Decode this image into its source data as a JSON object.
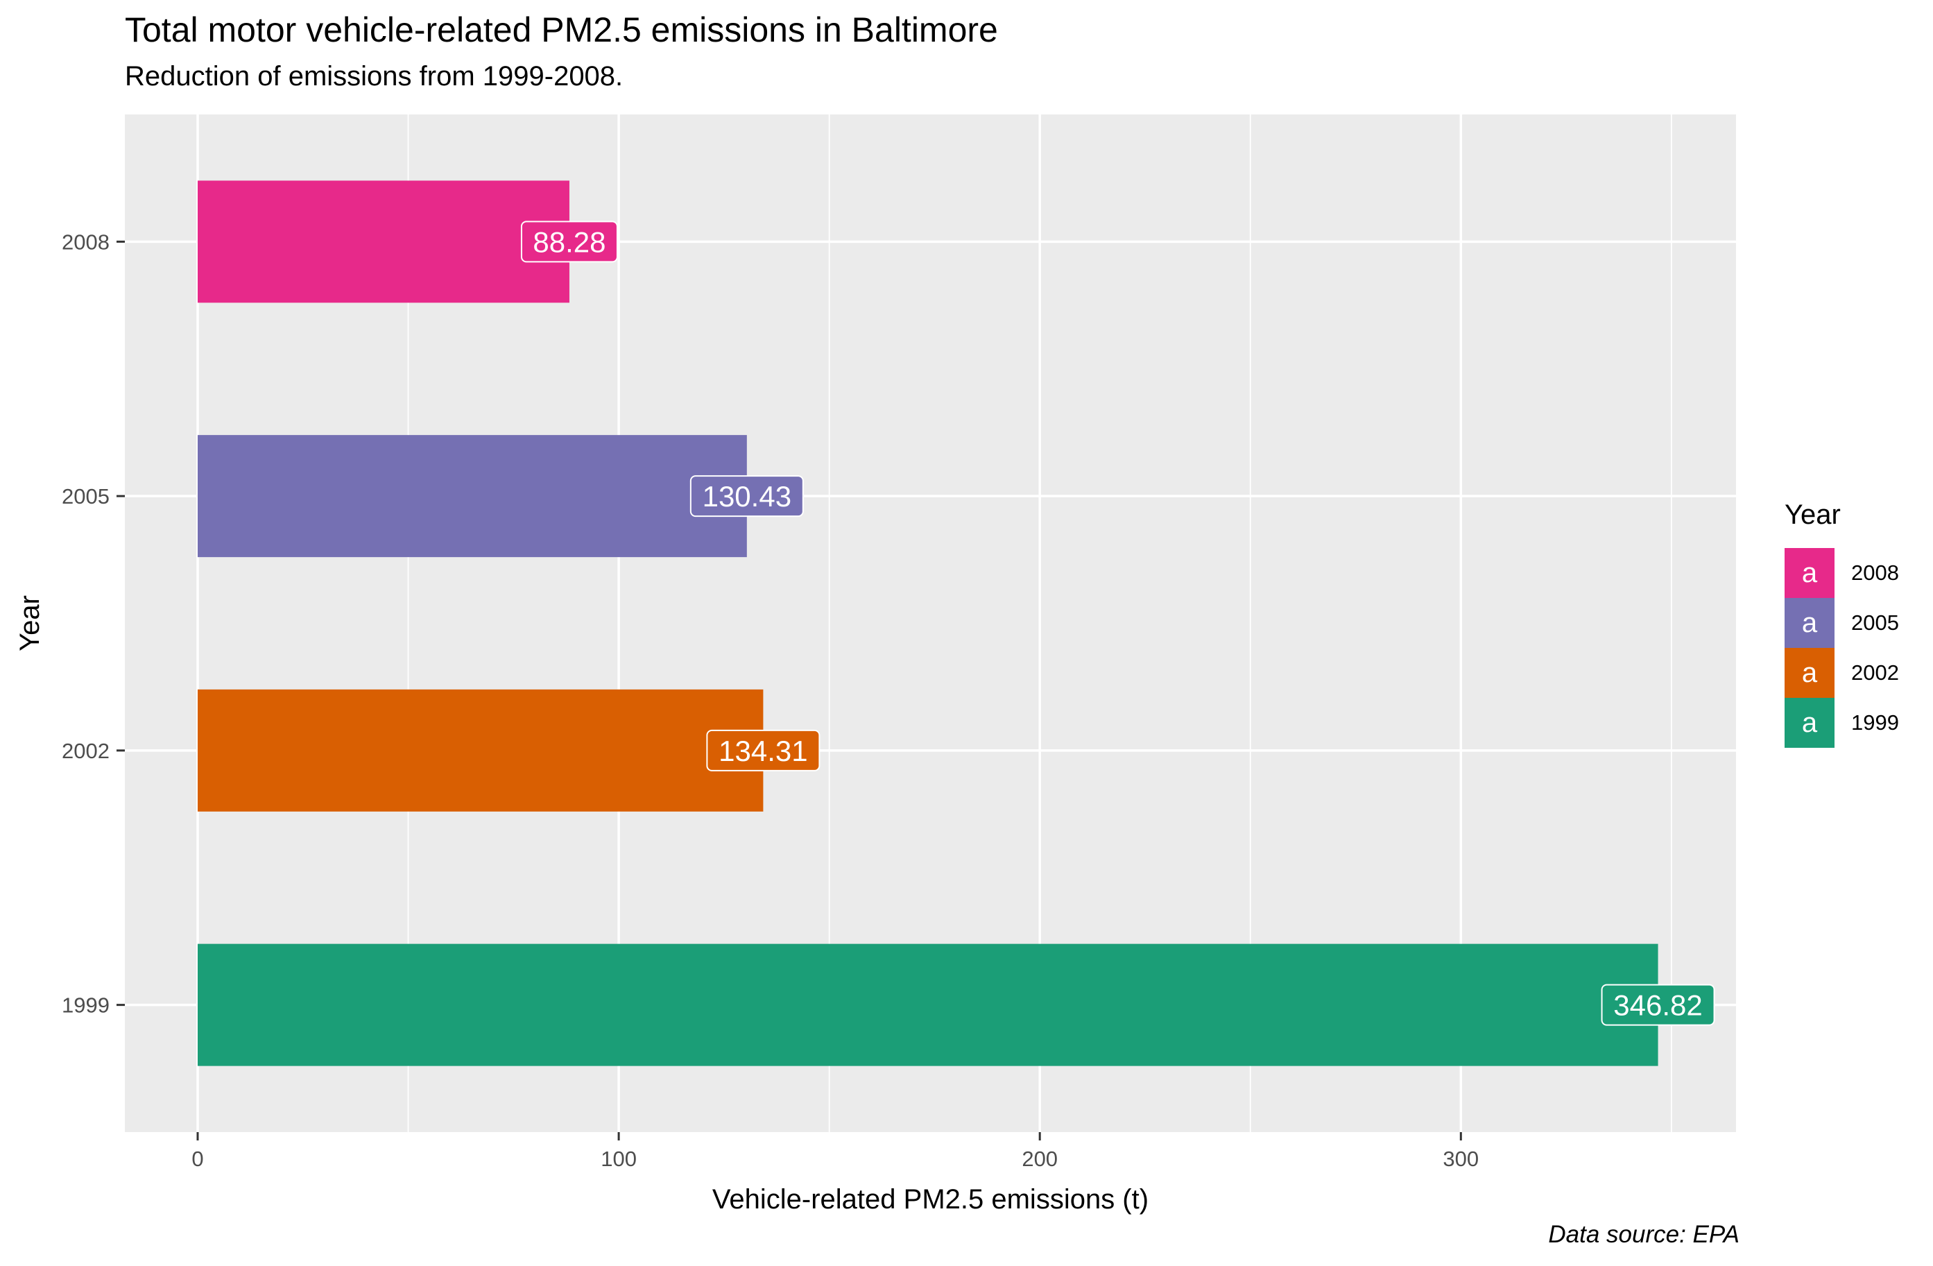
{
  "chart_data": {
    "type": "bar",
    "orientation": "horizontal",
    "title": "Total motor vehicle-related PM2.5 emissions in Baltimore",
    "subtitle": "Reduction of emissions from 1999-2008.",
    "xlabel": "Vehicle-related PM2.5 emissions (t)",
    "ylabel": "Year",
    "caption": "Data source: EPA",
    "categories": [
      "1999",
      "2002",
      "2005",
      "2008"
    ],
    "values": [
      346.82,
      134.31,
      130.43,
      88.28
    ],
    "labels": [
      "346.82",
      "134.31",
      "130.43",
      "88.28"
    ],
    "colors": [
      "#1b9e77",
      "#d95f02",
      "#7570b3",
      "#e7298a"
    ],
    "xlim": [
      -17.3,
      364.1
    ],
    "xticks": [
      0,
      100,
      200,
      300
    ],
    "xtick_labels": [
      "0",
      "100",
      "200",
      "300"
    ],
    "grid": true,
    "legend": {
      "title": "Year",
      "placement": "right",
      "key_glyph": "a",
      "items": [
        {
          "label": "2008",
          "color": "#e7298a"
        },
        {
          "label": "2005",
          "color": "#7570b3"
        },
        {
          "label": "2002",
          "color": "#d95f02"
        },
        {
          "label": "1999",
          "color": "#1b9e77"
        }
      ]
    }
  }
}
